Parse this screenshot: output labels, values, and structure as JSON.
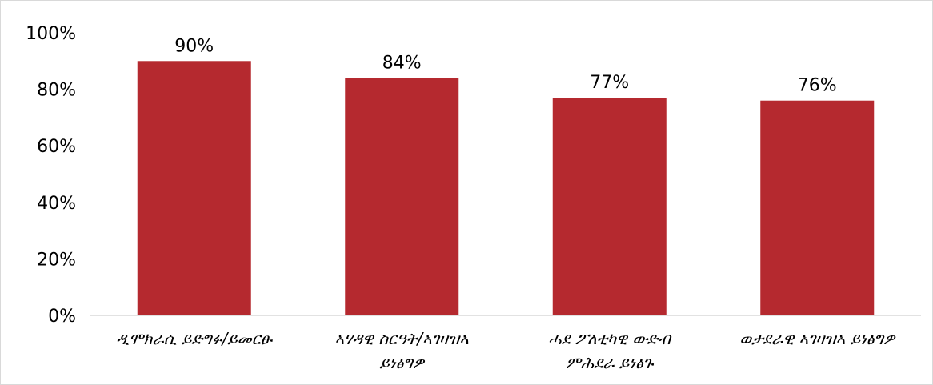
{
  "chart_data": {
    "type": "bar",
    "categories": [
      [
        "ዲሞክራሲ ይድግፉ/ይመርፁ"
      ],
      [
        "ኣሃዳዊ ስርዓት/ኣገዛዝኣ",
        "ይነፅግዎ"
      ],
      [
        "ሓደ ፖለቲካዊ ውድብ",
        "ምሕደራ ይነፅጉ"
      ],
      [
        "ወታደራዊ ኣገዛዝኣ ይነፅግዎ"
      ]
    ],
    "values": [
      90,
      84,
      77,
      76
    ],
    "data_labels": [
      "90%",
      "84%",
      "77%",
      "76%"
    ],
    "y_ticks": [
      "0%",
      "20%",
      "40%",
      "60%",
      "80%",
      "100%"
    ],
    "ylim": [
      0,
      100
    ],
    "grid": false,
    "legend": "none",
    "bar_color": "#b5292f",
    "axis_color": "#d9d9d9"
  }
}
